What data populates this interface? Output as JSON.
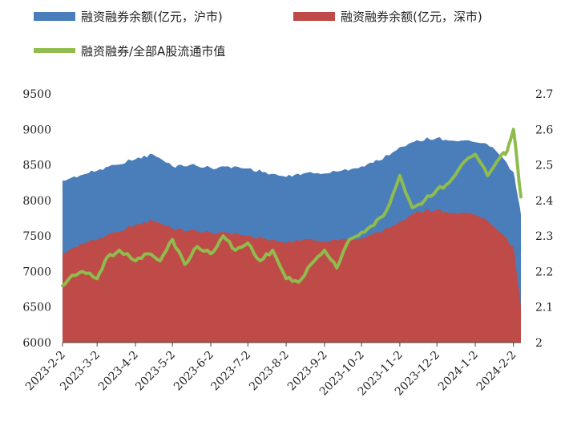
{
  "chart_data": {
    "type": "area",
    "colors": {
      "sh": "#4a7ebb",
      "sz": "#be4b48",
      "ratio": "#8fbc4d"
    },
    "series": [
      {
        "name": "融资融券余额(亿元，沪市)",
        "axis": "left",
        "type": "area",
        "x": [
          "2023-2-2",
          "2023-2-16",
          "2023-3-2",
          "2023-3-16",
          "2023-4-2",
          "2023-4-16",
          "2023-5-2",
          "2023-5-16",
          "2023-6-2",
          "2023-6-16",
          "2023-7-2",
          "2023-7-16",
          "2023-8-2",
          "2023-8-16",
          "2023-9-2",
          "2023-9-16",
          "2023-10-2",
          "2023-10-16",
          "2023-11-2",
          "2023-11-16",
          "2023-12-2",
          "2023-12-16",
          "2024-1-2",
          "2024-1-16",
          "2024-2-2",
          "2024-2-8"
        ],
        "values": [
          8280,
          8350,
          8420,
          8500,
          8580,
          8650,
          8480,
          8500,
          8460,
          8480,
          8450,
          8400,
          8330,
          8380,
          8380,
          8420,
          8480,
          8560,
          8750,
          8850,
          8880,
          8840,
          8820,
          8750,
          8400,
          7800
        ]
      },
      {
        "name": "融资融券余额(亿元，深市)",
        "axis": "left",
        "type": "area",
        "x": [
          "2023-2-2",
          "2023-2-16",
          "2023-3-2",
          "2023-3-16",
          "2023-4-2",
          "2023-4-16",
          "2023-5-2",
          "2023-5-16",
          "2023-6-2",
          "2023-6-16",
          "2023-7-2",
          "2023-7-16",
          "2023-8-2",
          "2023-8-16",
          "2023-9-2",
          "2023-9-16",
          "2023-10-2",
          "2023-10-16",
          "2023-11-2",
          "2023-11-16",
          "2023-12-2",
          "2023-12-16",
          "2024-1-2",
          "2024-1-16",
          "2024-2-2",
          "2024-2-8"
        ],
        "values": [
          7250,
          7380,
          7450,
          7550,
          7650,
          7720,
          7600,
          7580,
          7550,
          7550,
          7500,
          7470,
          7400,
          7450,
          7420,
          7450,
          7470,
          7550,
          7700,
          7850,
          7870,
          7820,
          7800,
          7650,
          7350,
          6500
        ]
      },
      {
        "name": "融资融券/全部A股流通市值",
        "axis": "right",
        "type": "line",
        "x": [
          "2023-2-2",
          "2023-2-10",
          "2023-2-18",
          "2023-3-2",
          "2023-3-10",
          "2023-3-20",
          "2023-4-2",
          "2023-4-12",
          "2023-4-22",
          "2023-5-2",
          "2023-5-12",
          "2023-5-22",
          "2023-6-2",
          "2023-6-12",
          "2023-6-22",
          "2023-7-2",
          "2023-7-12",
          "2023-7-22",
          "2023-8-2",
          "2023-8-12",
          "2023-8-22",
          "2023-9-2",
          "2023-9-12",
          "2023-9-22",
          "2023-10-2",
          "2023-10-12",
          "2023-10-22",
          "2023-11-2",
          "2023-11-12",
          "2023-11-22",
          "2023-12-2",
          "2023-12-12",
          "2023-12-22",
          "2024-1-2",
          "2024-1-12",
          "2024-1-22",
          "2024-1-28",
          "2024-2-2",
          "2024-2-8"
        ],
        "values": [
          2.16,
          2.19,
          2.2,
          2.18,
          2.24,
          2.26,
          2.23,
          2.25,
          2.23,
          2.29,
          2.22,
          2.27,
          2.25,
          2.3,
          2.26,
          2.28,
          2.23,
          2.26,
          2.18,
          2.17,
          2.22,
          2.26,
          2.21,
          2.29,
          2.31,
          2.33,
          2.37,
          2.47,
          2.38,
          2.4,
          2.43,
          2.45,
          2.5,
          2.53,
          2.47,
          2.52,
          2.54,
          2.6,
          2.41
        ]
      }
    ],
    "y_left": {
      "min": 6000,
      "max": 9500,
      "ticks": [
        "6000",
        "6500",
        "7000",
        "7500",
        "8000",
        "8500",
        "9000",
        "9500"
      ]
    },
    "y_right": {
      "min": 2.0,
      "max": 2.7,
      "ticks": [
        "2",
        "2.1",
        "2.2",
        "2.3",
        "2.4",
        "2.5",
        "2.6",
        "2.7"
      ]
    },
    "x_ticks": [
      "2023-2-2",
      "2023-3-2",
      "2023-4-2",
      "2023-5-2",
      "2023-6-2",
      "2023-7-2",
      "2023-8-2",
      "2023-9-2",
      "2023-10-2",
      "2023-11-2",
      "2023-12-2",
      "2024-1-2",
      "2024-2-2"
    ],
    "x_range": [
      "2023-2-2",
      "2024-2-8"
    ],
    "legend": [
      {
        "label": "融资融券余额(亿元，沪市)",
        "kind": "box",
        "color": "#4a7ebb"
      },
      {
        "label": "融资融券余额(亿元，深市)",
        "kind": "box",
        "color": "#be4b48"
      },
      {
        "label": "融资融券/全部A股流通市值",
        "kind": "line",
        "color": "#8fbc4d"
      }
    ],
    "legend_position": "top",
    "grid": false,
    "title": ""
  }
}
